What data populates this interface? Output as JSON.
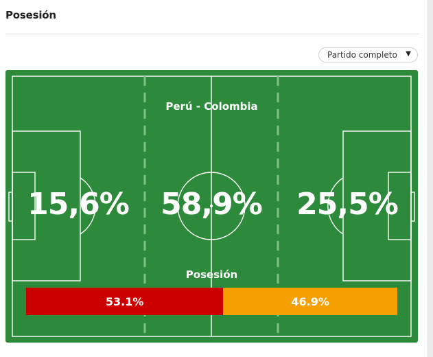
{
  "section": {
    "title": "Posesión"
  },
  "filter": {
    "selected": "Partido completo",
    "arrow_icon": "chevron-down-icon"
  },
  "pitch": {
    "match_title": "Perú - Colombia",
    "zones": {
      "left": "15,6%",
      "middle": "58,9%",
      "right": "25,5%"
    },
    "possession": {
      "title": "Posesión",
      "home": {
        "label": "53.1%",
        "value": 53.1,
        "color": "#cc0000"
      },
      "away": {
        "label": "46.9%",
        "value": 46.9,
        "color": "#f5a000"
      }
    },
    "colors": {
      "grass": "#2e8a3b",
      "lines": "#ffffff",
      "zone_dash": "#7fc18a"
    }
  }
}
